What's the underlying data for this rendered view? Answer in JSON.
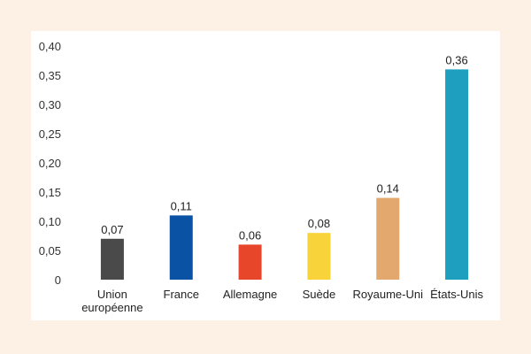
{
  "chart_data": {
    "type": "bar",
    "categories": [
      [
        "Union",
        "européenne"
      ],
      [
        "France"
      ],
      [
        "Allemagne"
      ],
      [
        "Suède"
      ],
      [
        "Royaume-Uni"
      ],
      [
        "États-Unis"
      ]
    ],
    "values": [
      0.07,
      0.11,
      0.06,
      0.08,
      0.14,
      0.36
    ],
    "value_labels": [
      "0,07",
      "0,11",
      "0,06",
      "0,08",
      "0,14",
      "0,36"
    ],
    "colors": [
      "#4a4a4a",
      "#0a52a4",
      "#e8462a",
      "#f8d33a",
      "#e3a86d",
      "#1f9fc0"
    ],
    "ylim": [
      0,
      0.4
    ],
    "yticks": [
      {
        "value": 0.4,
        "label": "0,40"
      },
      {
        "value": 0.35,
        "label": "0,35"
      },
      {
        "value": 0.3,
        "label": "0,30"
      },
      {
        "value": 0.25,
        "label": "0,25"
      },
      {
        "value": 0.2,
        "label": "0,20"
      },
      {
        "value": 0.15,
        "label": "0,15"
      },
      {
        "value": 0.1,
        "label": "0,10"
      },
      {
        "value": 0.05,
        "label": "0,05"
      },
      {
        "value": 0,
        "label": "0"
      }
    ],
    "grid": false,
    "legend": "none"
  }
}
